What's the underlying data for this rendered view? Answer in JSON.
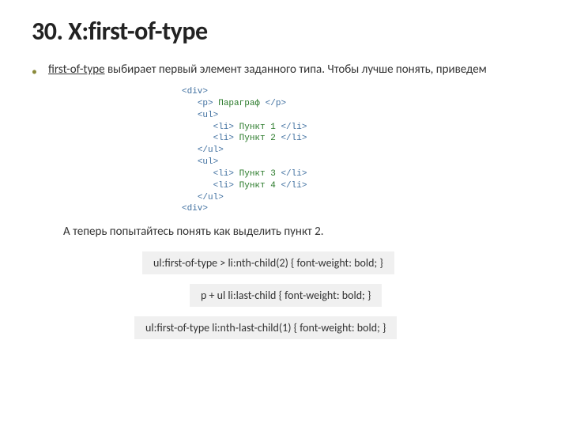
{
  "title": "30. X:first-of-type",
  "description_prefix": "first-of-type",
  "description_rest": " выбирает первый элемент заданного типа. Чтобы лучше понять, приведем",
  "code": {
    "l1": "<div>",
    "l2_open": "<p>",
    "l2_txt": " Параграф ",
    "l2_close": "</p>",
    "l3": "<ul>",
    "l4_open": "<li>",
    "l4_txt": " Пункт 1 ",
    "l4_close": "</li>",
    "l5_open": "<li>",
    "l5_txt": " Пункт 2 ",
    "l5_close": "</li>",
    "l6": "</ul>",
    "l7": "<ul>",
    "l8_open": "<li>",
    "l8_txt": " Пункт 3 ",
    "l8_close": "</li>",
    "l9_open": "<li>",
    "l9_txt": " Пункт 4 ",
    "l9_close": "</li>",
    "l10": "</ul>",
    "l11": "<div>"
  },
  "sub_desc": "А теперь попытайтесь понять как выделить пункт 2.",
  "css1": "ul:first-of-type > li:nth-child(2) { font-weight: bold; }",
  "css2": "p + ul li:last-child { font-weight: bold; }",
  "css3": "ul:first-of-type li:nth-last-child(1) { font-weight: bold; }",
  "colors": {
    "bg": "#ffffff",
    "text": "#333333",
    "tag": "#4070a0",
    "code_text": "#2a7a2a",
    "box_bg": "#f0f0f0",
    "bullet": "#8a8a3a"
  }
}
